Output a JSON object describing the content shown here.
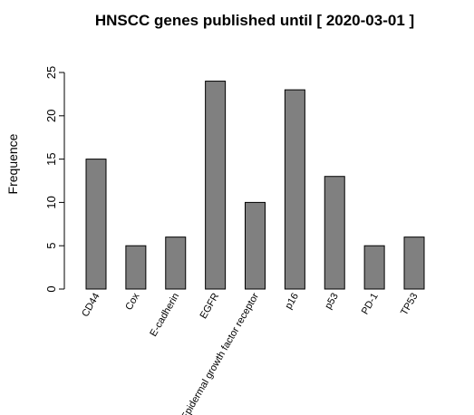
{
  "chart_data": {
    "type": "bar",
    "title": "HNSCC genes published until [ 2020-03-01 ]",
    "xlabel": "",
    "ylabel": "Frequence",
    "categories": [
      "CD44",
      "Cox",
      "E-cadherin",
      "EGFR",
      "Epidermal growth factor receptor",
      "p16",
      "p53",
      "PD-1",
      "TP53"
    ],
    "values": [
      15,
      5,
      6,
      24,
      10,
      23,
      13,
      5,
      6
    ],
    "ylim": [
      0,
      25
    ],
    "yticks": [
      0,
      5,
      10,
      15,
      20,
      25
    ],
    "grid": false,
    "legend": "none",
    "bar_color": "#808080"
  }
}
